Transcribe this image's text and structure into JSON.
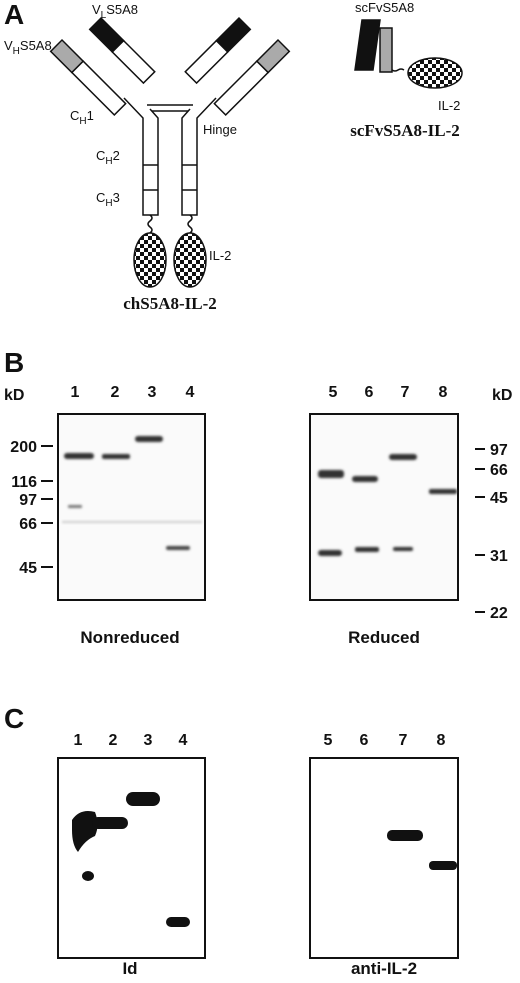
{
  "panel_a": {
    "label": "A",
    "antibody": {
      "vl": {
        "main": "V",
        "sub": "L",
        "rest": "S5A8"
      },
      "vh": {
        "main": "V",
        "sub": "H",
        "rest": "S5A8"
      },
      "ch1": {
        "main": "C",
        "sub": "H",
        "rest": "1"
      },
      "ch2": {
        "main": "C",
        "sub": "H",
        "rest": "2"
      },
      "ch3": {
        "main": "C",
        "sub": "H",
        "rest": "3"
      },
      "hinge": "Hinge",
      "il2": "IL-2",
      "caption": "chS5A8-IL-2"
    },
    "scfv": {
      "domain": "scFvS5A8",
      "il2": "IL-2",
      "caption": "scFvS5A8-IL-2"
    }
  },
  "panel_b": {
    "label": "B",
    "left": {
      "unit": "kD",
      "lanes": [
        "1",
        "2",
        "3",
        "4"
      ],
      "markers": [
        200,
        116,
        97,
        66,
        45
      ],
      "caption": "Nonreduced"
    },
    "right": {
      "unit": "kD",
      "lanes": [
        "5",
        "6",
        "7",
        "8"
      ],
      "markers": [
        97,
        66,
        45,
        31,
        22
      ],
      "caption": "Reduced"
    }
  },
  "panel_c": {
    "label": "C",
    "left": {
      "lanes": [
        "1",
        "2",
        "3",
        "4"
      ],
      "caption": "Id"
    },
    "right": {
      "lanes": [
        "5",
        "6",
        "7",
        "8"
      ],
      "caption": "anti-IL-2"
    }
  }
}
